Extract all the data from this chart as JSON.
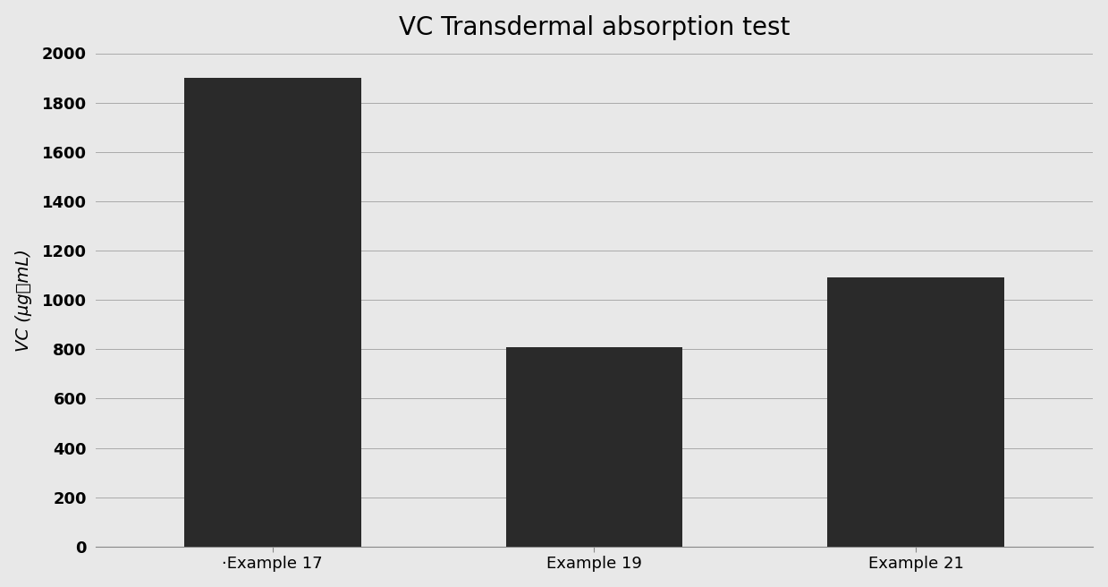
{
  "title": "VC Transdermal absorption test",
  "categories": [
    "‐Example 17",
    "Example 19",
    "Example 21"
  ],
  "values": [
    1900,
    810,
    1090
  ],
  "bar_color": "#2a2a2a",
  "ylabel": "VC (μg／mL)",
  "ylim": [
    0,
    2000
  ],
  "yticks": [
    0,
    200,
    400,
    600,
    800,
    1000,
    1200,
    1400,
    1600,
    1800,
    2000
  ],
  "title_fontsize": 20,
  "label_fontsize": 14,
  "tick_fontsize": 13,
  "background_color": "#e8e8e8",
  "plot_background": "#e8e8e8",
  "grid_color": "#aaaaaa",
  "bar_width": 0.55
}
